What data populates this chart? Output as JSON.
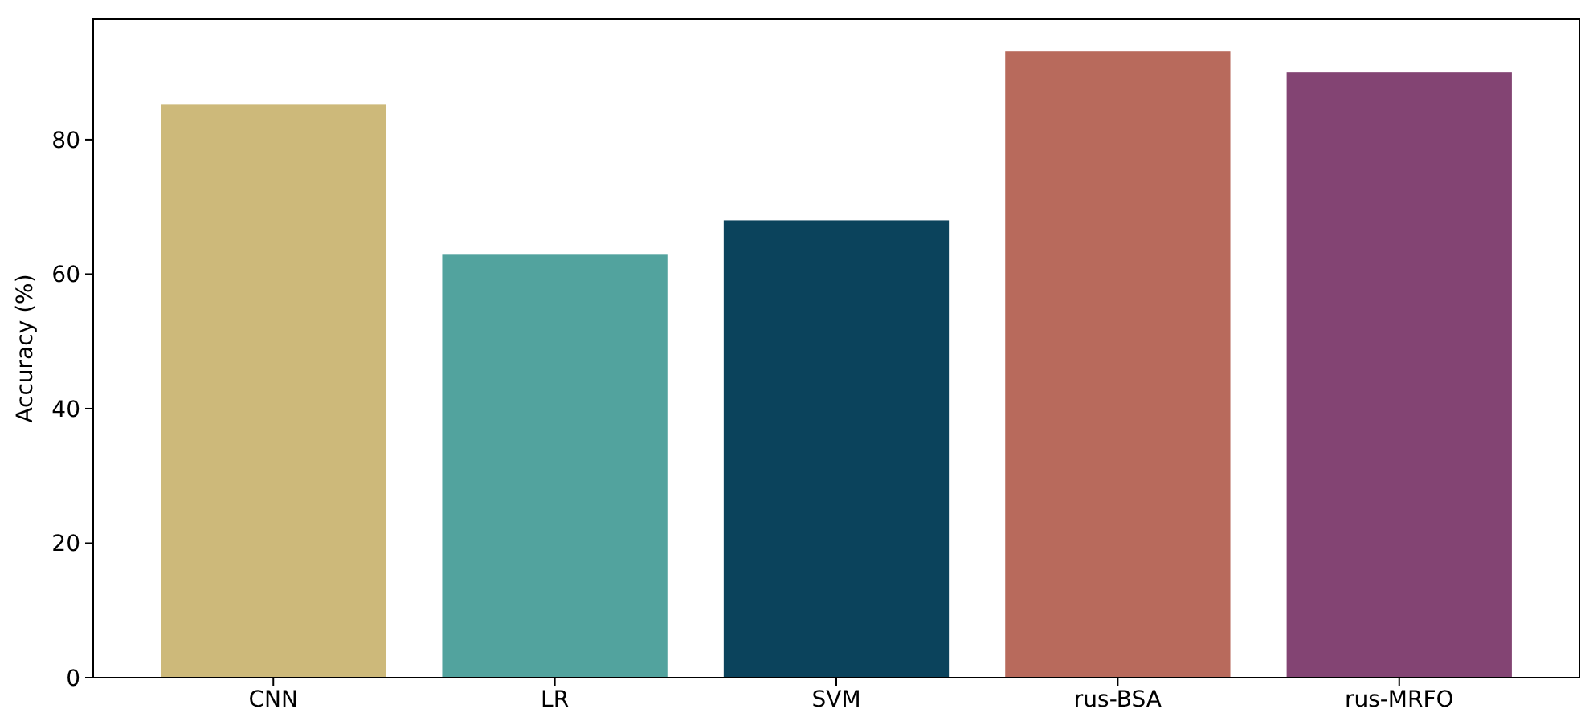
{
  "chart_data": {
    "type": "bar",
    "ylabel": "Accuracy (%)",
    "categories": [
      "CNN",
      "LR",
      "SVM",
      "rus-BSA",
      "rus-MRFO"
    ],
    "values": [
      85.2,
      63,
      68,
      93.1,
      90
    ],
    "colors": [
      "#cdb97a",
      "#52a39e",
      "#0b435c",
      "#b86a5c",
      "#834473"
    ],
    "ylim": [
      0,
      97.9
    ],
    "yticks": [
      0,
      20,
      40,
      60,
      80
    ],
    "grid": false
  }
}
